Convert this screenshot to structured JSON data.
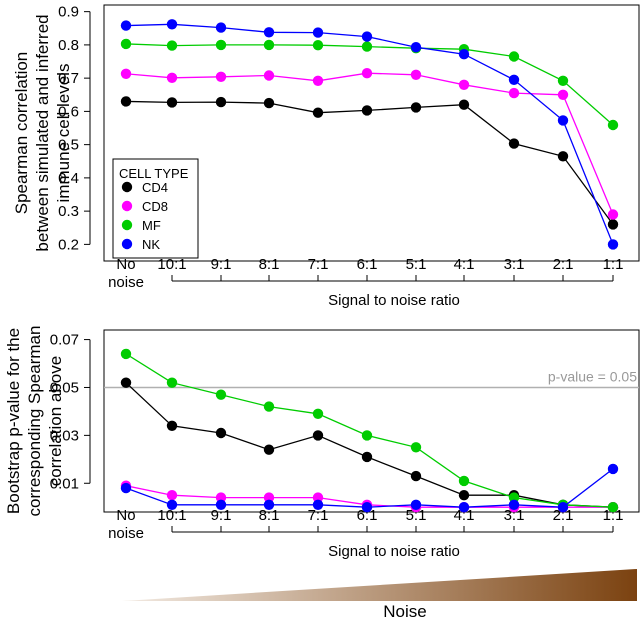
{
  "chart_data": [
    {
      "type": "line",
      "ylabel_lines": [
        "Spearman correlation",
        "between simulated and inferred",
        "immune cell levels"
      ],
      "xlabel": "Signal to noise ratio",
      "categories": [
        "No noise",
        "10:1",
        "9:1",
        "8:1",
        "7:1",
        "6:1",
        "5:1",
        "4:1",
        "3:1",
        "2:1",
        "1:1"
      ],
      "yticks": [
        "0.2",
        "0.3",
        "0.4",
        "0.5",
        "0.6",
        "0.7",
        "0.8",
        "0.9"
      ],
      "ylim": [
        0.15,
        0.92
      ],
      "legend": {
        "title": "CELL TYPE",
        "placement": "bottom-left"
      },
      "series": [
        {
          "name": "CD4",
          "color": "#000000",
          "values": [
            0.63,
            0.627,
            0.628,
            0.625,
            0.596,
            0.603,
            0.612,
            0.62,
            0.503,
            0.465,
            0.26
          ]
        },
        {
          "name": "CD8",
          "color": "#ff00ff",
          "values": [
            0.713,
            0.701,
            0.704,
            0.708,
            0.692,
            0.715,
            0.71,
            0.68,
            0.655,
            0.65,
            0.29
          ]
        },
        {
          "name": "MF",
          "color": "#00cc00",
          "values": [
            0.803,
            0.798,
            0.8,
            0.8,
            0.799,
            0.795,
            0.79,
            0.787,
            0.765,
            0.692,
            0.559
          ]
        },
        {
          "name": "NK",
          "color": "#0000ff",
          "values": [
            0.858,
            0.862,
            0.852,
            0.838,
            0.837,
            0.825,
            0.793,
            0.772,
            0.695,
            0.573,
            0.2
          ]
        }
      ]
    },
    {
      "type": "line",
      "ylabel_lines": [
        "Bootstrap p-value for the",
        "corresponding Spearman",
        "correlation above"
      ],
      "xlabel": "Signal to noise ratio",
      "categories": [
        "No noise",
        "10:1",
        "9:1",
        "8:1",
        "7:1",
        "6:1",
        "5:1",
        "4:1",
        "3:1",
        "2:1",
        "1:1"
      ],
      "yticks": [
        "0.01",
        "0.03",
        "0.05",
        "0.07"
      ],
      "ylim": [
        -0.002,
        0.074
      ],
      "reference_line": {
        "value": 0.05,
        "label": "p-value = 0.05",
        "color": "#b0b0b0"
      },
      "series": [
        {
          "name": "CD4",
          "color": "#000000",
          "values": [
            0.052,
            0.034,
            0.031,
            0.024,
            0.03,
            0.021,
            0.013,
            0.005,
            0.005,
            0.001,
            0.0
          ]
        },
        {
          "name": "CD8",
          "color": "#ff00ff",
          "values": [
            0.009,
            0.005,
            0.004,
            0.004,
            0.004,
            0.001,
            0.0,
            0.0,
            0.0,
            0.0,
            0.0
          ]
        },
        {
          "name": "MF",
          "color": "#00cc00",
          "values": [
            0.064,
            0.052,
            0.047,
            0.042,
            0.039,
            0.03,
            0.025,
            0.011,
            0.004,
            0.001,
            0.0
          ]
        },
        {
          "name": "NK",
          "color": "#0000ff",
          "values": [
            0.008,
            0.001,
            0.001,
            0.001,
            0.001,
            0.0,
            0.001,
            0.0,
            0.001,
            0.0,
            0.016
          ]
        }
      ]
    }
  ],
  "noise_ramp": {
    "label": "Noise",
    "color_light": "#f3ebe3",
    "color_dark": "#7b4210"
  }
}
